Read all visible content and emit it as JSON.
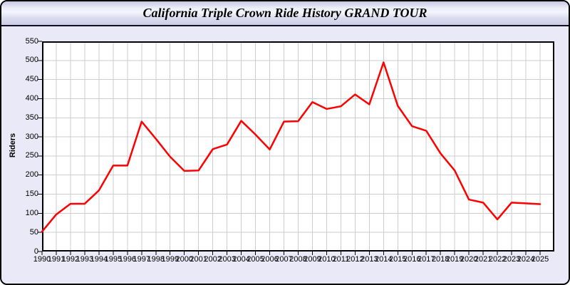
{
  "header": {
    "title": "California Triple Crown Ride History GRAND TOUR"
  },
  "chart_data": {
    "type": "line",
    "title": "California Triple Crown Ride History GRAND TOUR",
    "xlabel": "",
    "ylabel": "Riders",
    "ylim": [
      0,
      550
    ],
    "ytick_step": 50,
    "grid": true,
    "legend": "none",
    "line_color": "#ff0000",
    "plot_bg": "#ffffff",
    "panel_bg": "#e9e9f8",
    "grid_color": "#cccccc",
    "axis_color": "#000000",
    "x": [
      "1990",
      "1991",
      "1992",
      "1993",
      "1994",
      "1995",
      "1996",
      "1997",
      "1998",
      "1999",
      "2000",
      "2001",
      "2002",
      "2003",
      "2004",
      "2005",
      "2006",
      "2007",
      "2008",
      "2009",
      "2010",
      "2011",
      "2012",
      "2013",
      "2014",
      "2015",
      "2016",
      "2017",
      "2018",
      "2019",
      "2020",
      "2021",
      "2022",
      "2023",
      "2024",
      "2025"
    ],
    "series": [
      {
        "name": "Riders",
        "values": [
          52,
          97,
          125,
          125,
          160,
          225,
          225,
          340,
          295,
          248,
          211,
          212,
          268,
          280,
          342,
          306,
          267,
          340,
          341,
          391,
          373,
          380,
          411,
          385,
          495,
          381,
          328,
          316,
          257,
          212,
          136,
          128,
          84,
          128,
          126,
          124
        ]
      }
    ]
  }
}
